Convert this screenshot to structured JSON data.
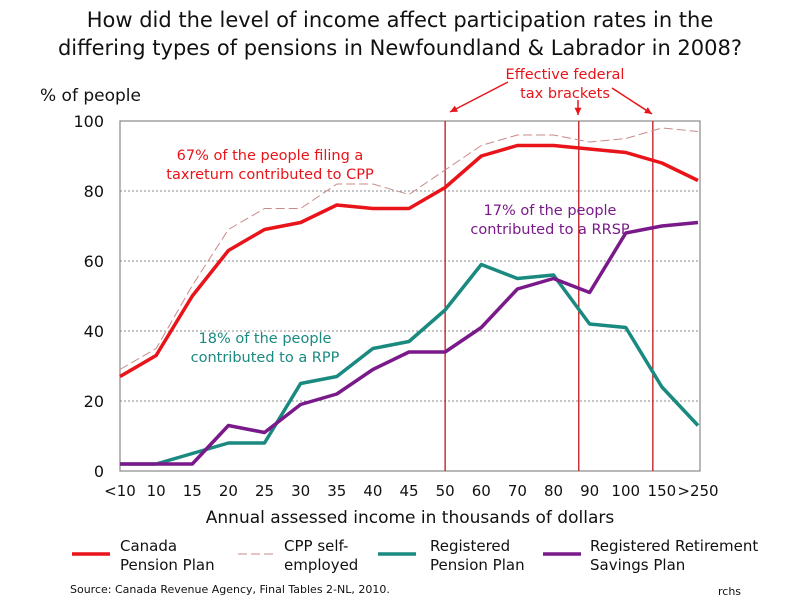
{
  "chart_data": {
    "type": "line",
    "title": "How did the level of income affect participation rates in the differing types of pensions in Newfoundland & Labrador in 2008?",
    "title_lines": [
      "How did the level of income affect participation rates in the",
      "differing types of pensions in Newfoundland & Labrador in 2008?"
    ],
    "xlabel": "Annual assessed income in thousands of dollars",
    "ylabel": "% of people",
    "ylim": [
      0,
      100
    ],
    "yticks": [
      "0",
      "20",
      "40",
      "60",
      "80",
      "100"
    ],
    "grid": "horizontal dotted",
    "categories": [
      "<10",
      "10",
      "15",
      "20",
      "25",
      "30",
      "35",
      "40",
      "45",
      "50",
      "60",
      "70",
      "80",
      "90",
      "100",
      "150",
      ">250"
    ],
    "series": [
      {
        "name": "Canada Pension Plan",
        "color": "#e8141a",
        "style": "solid",
        "values": [
          27,
          33,
          50,
          63,
          69,
          71,
          76,
          75,
          75,
          81,
          90,
          93,
          93,
          92,
          91,
          88,
          83
        ]
      },
      {
        "name": "CPP self-employed",
        "color": "#c98a8a",
        "style": "dashed",
        "values": [
          29,
          35,
          53,
          69,
          75,
          75,
          82,
          82,
          79,
          86,
          93,
          96,
          96,
          94,
          95,
          98,
          97
        ]
      },
      {
        "name": "Registered Pension Plan",
        "color": "#1a8a80",
        "style": "solid",
        "values": [
          2,
          2,
          5,
          8,
          8,
          25,
          27,
          35,
          37,
          46,
          59,
          55,
          56,
          42,
          41,
          24,
          13
        ]
      },
      {
        "name": "Registered Retirement Savings Plan",
        "color": "#7a1a8a",
        "style": "solid",
        "values": [
          2,
          2,
          2,
          13,
          11,
          19,
          22,
          29,
          34,
          34,
          41,
          52,
          55,
          51,
          68,
          70,
          71
        ]
      }
    ],
    "legend": "bottom",
    "legend_lines": [
      [
        "Canada",
        "Pension Plan"
      ],
      [
        "CPP self-",
        "employed"
      ],
      [
        "Registered",
        "Pension Plan"
      ],
      [
        "Registered Retirement",
        "Savings Plan"
      ]
    ],
    "annotations": {
      "cpp": [
        "67% of the people filing a",
        "taxreturn contributed to CPP"
      ],
      "rpp": [
        "18% of the people",
        "contributed to a RPP"
      ],
      "rrsp": [
        "17% of the people",
        "contributed to a RRSP"
      ],
      "brackets": [
        "Effective federal",
        "tax brackets"
      ]
    }
  },
  "source": "Source: Canada Revenue Agency, Final Tables  2-NL, 2010.",
  "credit": "rchs"
}
